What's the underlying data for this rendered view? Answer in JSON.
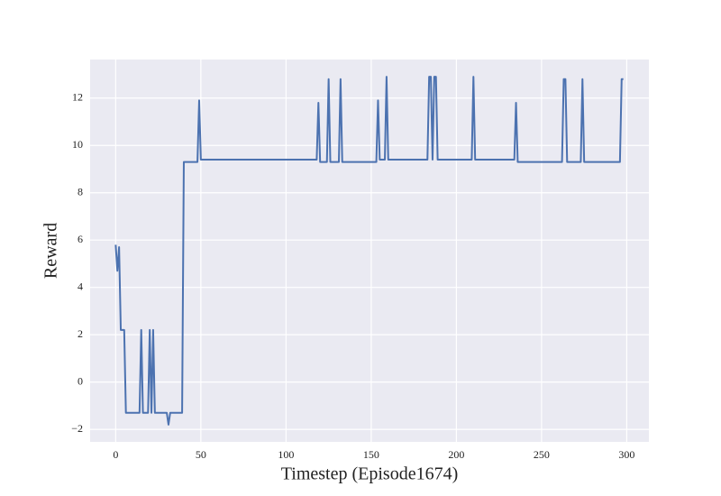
{
  "chart_data": {
    "type": "line",
    "x_label": "Timestep (Episode1674)",
    "y_label": "Reward",
    "xlim": [
      -15,
      313
    ],
    "ylim": [
      -2.53,
      13.63
    ],
    "xticks": [
      0,
      50,
      100,
      150,
      200,
      250,
      300
    ],
    "yticks": [
      {
        "value": -2,
        "label": "−2"
      },
      0,
      2,
      4,
      6,
      8,
      10,
      12
    ],
    "grid": true,
    "series": [
      {
        "color": "#4c72b0",
        "x": [
          0,
          1,
          2,
          3,
          5,
          6,
          14,
          15,
          16,
          19,
          20,
          21,
          22,
          23,
          30,
          31,
          32,
          39,
          40,
          48,
          49,
          50,
          118,
          119,
          120,
          124,
          125,
          126,
          131,
          132,
          133,
          153,
          154,
          155,
          158,
          159,
          160,
          183,
          184,
          185,
          186,
          187,
          188,
          189,
          209,
          210,
          211,
          234,
          235,
          236,
          262,
          263,
          264,
          265,
          273,
          274,
          275,
          296,
          297,
          298
        ],
        "values": [
          5.8,
          4.7,
          5.7,
          2.2,
          2.2,
          -1.3,
          -1.3,
          2.2,
          -1.3,
          -1.3,
          2.2,
          -1.3,
          2.2,
          -1.3,
          -1.3,
          -1.8,
          -1.3,
          -1.3,
          9.3,
          9.3,
          11.9,
          9.4,
          9.4,
          11.8,
          9.3,
          9.3,
          12.8,
          9.3,
          9.3,
          12.8,
          9.3,
          9.3,
          11.9,
          9.4,
          9.4,
          12.9,
          9.4,
          9.4,
          12.9,
          12.9,
          9.4,
          12.9,
          12.9,
          9.4,
          9.4,
          12.9,
          9.4,
          9.4,
          11.8,
          9.3,
          9.3,
          12.8,
          12.8,
          9.3,
          9.3,
          12.8,
          9.3,
          9.3,
          12.8,
          12.8
        ]
      }
    ]
  }
}
